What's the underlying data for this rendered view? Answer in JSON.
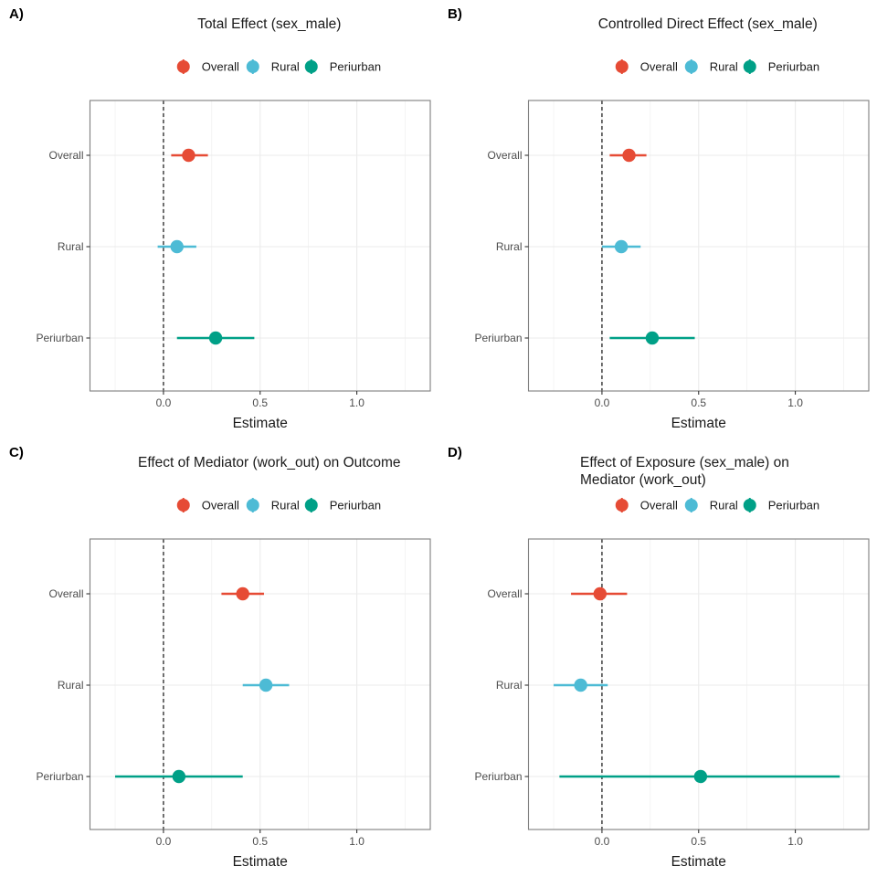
{
  "figure": {
    "colors": {
      "Overall": "#E64B35",
      "Rural": "#4DBBD5",
      "Periurban": "#00A087",
      "panel_border": "#7f7f7f",
      "grid": "#ebebeb",
      "reference_line": "#333333"
    }
  },
  "chart_data": [
    {
      "type": "forest",
      "tag": "A)",
      "title": [
        "Total Effect (sex_male)"
      ],
      "xlabel": "Estimate",
      "ylabel": "",
      "xlim": [
        -0.38,
        1.38
      ],
      "xticks": [
        0.0,
        0.5,
        1.0
      ],
      "xtick_labels": [
        "0.0",
        "0.5",
        "1.0"
      ],
      "grid": true,
      "reference_line": 0,
      "legend": {
        "position": "top",
        "entries": [
          "Overall",
          "Rural",
          "Periurban"
        ]
      },
      "categories": [
        "Overall",
        "Rural",
        "Periurban"
      ],
      "series": [
        {
          "name": "Overall",
          "estimate": 0.13,
          "lower": 0.04,
          "upper": 0.23
        },
        {
          "name": "Rural",
          "estimate": 0.07,
          "lower": -0.03,
          "upper": 0.17
        },
        {
          "name": "Periurban",
          "estimate": 0.27,
          "lower": 0.07,
          "upper": 0.47
        }
      ]
    },
    {
      "type": "forest",
      "tag": "B)",
      "title": [
        "Controlled Direct Effect (sex_male)"
      ],
      "xlabel": "Estimate",
      "ylabel": "",
      "xlim": [
        -0.38,
        1.38
      ],
      "xticks": [
        0.0,
        0.5,
        1.0
      ],
      "xtick_labels": [
        "0.0",
        "0.5",
        "1.0"
      ],
      "grid": true,
      "reference_line": 0,
      "legend": {
        "position": "top",
        "entries": [
          "Overall",
          "Rural",
          "Periurban"
        ]
      },
      "categories": [
        "Overall",
        "Rural",
        "Periurban"
      ],
      "series": [
        {
          "name": "Overall",
          "estimate": 0.14,
          "lower": 0.04,
          "upper": 0.23
        },
        {
          "name": "Rural",
          "estimate": 0.1,
          "lower": 0.0,
          "upper": 0.2
        },
        {
          "name": "Periurban",
          "estimate": 0.26,
          "lower": 0.04,
          "upper": 0.48
        }
      ]
    },
    {
      "type": "forest",
      "tag": "C)",
      "title": [
        "Effect of Mediator (work_out) on Outcome"
      ],
      "xlabel": "Estimate",
      "ylabel": "",
      "xlim": [
        -0.38,
        1.38
      ],
      "xticks": [
        0.0,
        0.5,
        1.0
      ],
      "xtick_labels": [
        "0.0",
        "0.5",
        "1.0"
      ],
      "grid": true,
      "reference_line": 0,
      "legend": {
        "position": "top",
        "entries": [
          "Overall",
          "Rural",
          "Periurban"
        ]
      },
      "categories": [
        "Overall",
        "Rural",
        "Periurban"
      ],
      "series": [
        {
          "name": "Overall",
          "estimate": 0.41,
          "lower": 0.3,
          "upper": 0.52
        },
        {
          "name": "Rural",
          "estimate": 0.53,
          "lower": 0.41,
          "upper": 0.65
        },
        {
          "name": "Periurban",
          "estimate": 0.08,
          "lower": -0.25,
          "upper": 0.41
        }
      ]
    },
    {
      "type": "forest",
      "tag": "D)",
      "title": [
        "Effect of Exposure (sex_male) on",
        "Mediator (work_out)"
      ],
      "xlabel": "Estimate",
      "ylabel": "",
      "xlim": [
        -0.38,
        1.38
      ],
      "xticks": [
        0.0,
        0.5,
        1.0
      ],
      "xtick_labels": [
        "0.0",
        "0.5",
        "1.0"
      ],
      "grid": true,
      "reference_line": 0,
      "legend": {
        "position": "top",
        "entries": [
          "Overall",
          "Rural",
          "Periurban"
        ]
      },
      "categories": [
        "Overall",
        "Rural",
        "Periurban"
      ],
      "series": [
        {
          "name": "Overall",
          "estimate": -0.01,
          "lower": -0.16,
          "upper": 0.13
        },
        {
          "name": "Rural",
          "estimate": -0.11,
          "lower": -0.25,
          "upper": 0.03
        },
        {
          "name": "Periurban",
          "estimate": 0.51,
          "lower": -0.22,
          "upper": 1.23
        }
      ]
    }
  ]
}
